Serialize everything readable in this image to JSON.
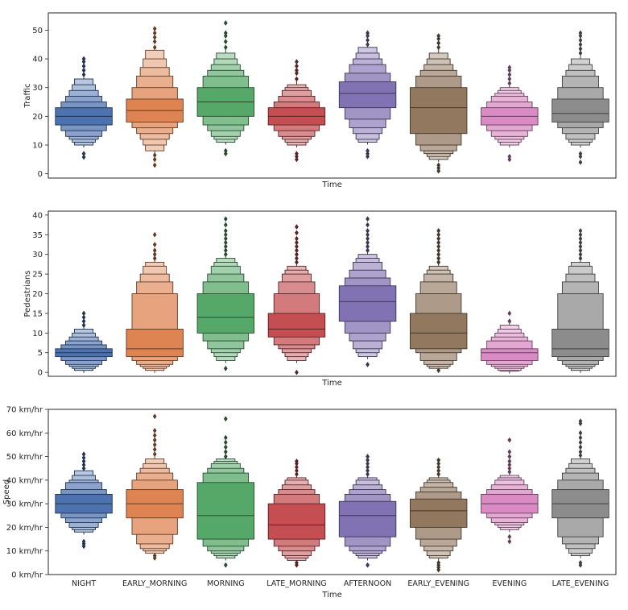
{
  "chart_data": [
    {
      "type": "boxen",
      "xlabel": "Time",
      "ylabel": "Traffic",
      "ylim": [
        -1.5,
        56
      ],
      "yticks": [
        0,
        10,
        20,
        30,
        40,
        50
      ],
      "ytick_labels": [
        "0",
        "10",
        "20",
        "30",
        "40",
        "50"
      ],
      "show_x_tick_labels": false,
      "categories": [
        "NIGHT",
        "EARLY_MORNING",
        "MORNING",
        "LATE_MORNING",
        "AFTERNOON",
        "EARLY_EVENING",
        "EVENING",
        "LATE_EVENING"
      ],
      "series": [
        {
          "levels": [
            [
              17,
              23
            ],
            [
              15,
              25
            ],
            [
              13,
              27
            ],
            [
              12,
              29
            ],
            [
              11,
              31
            ],
            [
              10,
              33
            ]
          ],
          "median": 20,
          "outliers": [
            5.8,
            7,
            34.5,
            36,
            37.5,
            39,
            40
          ]
        },
        {
          "levels": [
            [
              18,
              26
            ],
            [
              16,
              30
            ],
            [
              14,
              34
            ],
            [
              12,
              37
            ],
            [
              10,
              40
            ],
            [
              8,
              43
            ]
          ],
          "median": 22,
          "outliers": [
            3,
            5,
            6.5,
            44,
            46,
            47.5,
            49,
            50.5
          ]
        },
        {
          "levels": [
            [
              20,
              30
            ],
            [
              17,
              34
            ],
            [
              15,
              36
            ],
            [
              13,
              38
            ],
            [
              12,
              40
            ],
            [
              11,
              42
            ]
          ],
          "median": 25,
          "outliers": [
            7,
            8,
            44,
            46,
            48,
            49,
            52.5
          ]
        },
        {
          "levels": [
            [
              17,
              23
            ],
            [
              15,
              25
            ],
            [
              13,
              27
            ],
            [
              12,
              29
            ],
            [
              11,
              30
            ],
            [
              10,
              31
            ]
          ],
          "median": 20,
          "outliers": [
            5,
            6,
            7,
            33,
            35,
            36,
            37.5,
            39
          ]
        },
        {
          "levels": [
            [
              23,
              32
            ],
            [
              19,
              35
            ],
            [
              16,
              38
            ],
            [
              14,
              40
            ],
            [
              12,
              42
            ],
            [
              11,
              44
            ]
          ],
          "median": 28,
          "outliers": [
            6,
            7,
            8,
            45,
            46.5,
            48,
            49
          ]
        },
        {
          "levels": [
            [
              14,
              30
            ],
            [
              10,
              34
            ],
            [
              8,
              36
            ],
            [
              7,
              38
            ],
            [
              6,
              40
            ],
            [
              5,
              42
            ]
          ],
          "median": 23,
          "outliers": [
            1,
            2,
            3,
            44,
            45.5,
            47,
            48
          ]
        },
        {
          "levels": [
            [
              17,
              23
            ],
            [
              15,
              25
            ],
            [
              13,
              27
            ],
            [
              12,
              28
            ],
            [
              11,
              29
            ],
            [
              10,
              30
            ]
          ],
          "median": 20,
          "outliers": [
            5,
            6,
            31.5,
            33,
            34.5,
            36,
            37
          ]
        },
        {
          "levels": [
            [
              18,
              26
            ],
            [
              16,
              30
            ],
            [
              14,
              34
            ],
            [
              12,
              36
            ],
            [
              11,
              38
            ],
            [
              10,
              40
            ]
          ],
          "median": 21,
          "outliers": [
            4,
            6,
            7,
            42,
            43.5,
            45,
            46.5,
            48,
            49
          ]
        }
      ]
    },
    {
      "type": "boxen",
      "xlabel": "Time",
      "ylabel": "Pedestrians",
      "ylim": [
        -1,
        41
      ],
      "yticks": [
        0,
        5,
        10,
        15,
        20,
        25,
        30,
        35,
        40
      ],
      "ytick_labels": [
        "0",
        "5",
        "10",
        "15",
        "20",
        "25",
        "30",
        "35",
        "40"
      ],
      "show_x_tick_labels": false,
      "categories": [
        "NIGHT",
        "EARLY_MORNING",
        "MORNING",
        "LATE_MORNING",
        "AFTERNOON",
        "EARLY_EVENING",
        "EVENING",
        "LATE_EVENING"
      ],
      "series": [
        {
          "levels": [
            [
              4,
              6
            ],
            [
              3,
              7
            ],
            [
              2,
              8
            ],
            [
              1.5,
              9
            ],
            [
              1,
              10
            ],
            [
              0.5,
              11
            ]
          ],
          "median": 5,
          "outliers": [
            12,
            13,
            14,
            15
          ]
        },
        {
          "levels": [
            [
              4,
              11
            ],
            [
              3,
              20
            ],
            [
              2,
              23
            ],
            [
              1.5,
              25
            ],
            [
              1,
              27
            ],
            [
              0.5,
              28
            ]
          ],
          "median": 6,
          "outliers": [
            29,
            30,
            31,
            32.5,
            35
          ]
        },
        {
          "levels": [
            [
              10,
              20
            ],
            [
              8,
              23
            ],
            [
              6,
              25
            ],
            [
              5,
              27
            ],
            [
              4,
              28
            ],
            [
              3,
              29
            ]
          ],
          "median": 14,
          "outliers": [
            1,
            30,
            31,
            32,
            33,
            34,
            35,
            36,
            37.5,
            39
          ]
        },
        {
          "levels": [
            [
              9,
              15
            ],
            [
              7,
              20
            ],
            [
              6,
              23
            ],
            [
              5,
              25
            ],
            [
              4,
              26
            ],
            [
              3,
              27
            ]
          ],
          "median": 11,
          "outliers": [
            0,
            28,
            29,
            30,
            31,
            32,
            33,
            34,
            35.5,
            37
          ]
        },
        {
          "levels": [
            [
              13,
              22
            ],
            [
              10,
              24
            ],
            [
              8,
              26
            ],
            [
              6,
              28
            ],
            [
              5,
              29
            ],
            [
              4,
              30
            ]
          ],
          "median": 18,
          "outliers": [
            2,
            31,
            32,
            33,
            34,
            35,
            36,
            37.5,
            39
          ]
        },
        {
          "levels": [
            [
              6,
              15
            ],
            [
              5,
              20
            ],
            [
              3,
              23
            ],
            [
              2,
              25
            ],
            [
              1.5,
              26
            ],
            [
              1,
              27
            ]
          ],
          "median": 10,
          "outliers": [
            0.5,
            28,
            29,
            30,
            31,
            32,
            33,
            34,
            35,
            36
          ]
        },
        {
          "levels": [
            [
              3,
              6
            ],
            [
              2,
              8
            ],
            [
              1.5,
              9
            ],
            [
              1,
              10
            ],
            [
              0.5,
              11
            ],
            [
              0.3,
              12
            ]
          ],
          "median": 5,
          "outliers": [
            13,
            15
          ]
        },
        {
          "levels": [
            [
              4,
              11
            ],
            [
              3,
              20
            ],
            [
              2,
              23
            ],
            [
              1.5,
              25
            ],
            [
              1,
              27
            ],
            [
              0.5,
              28
            ]
          ],
          "median": 6,
          "outliers": [
            29,
            30,
            31,
            32,
            33,
            34,
            35,
            36
          ]
        }
      ]
    },
    {
      "type": "boxen",
      "xlabel": "Time",
      "ylabel": "Speed",
      "ylim": [
        0,
        70
      ],
      "yticks": [
        0,
        10,
        20,
        30,
        40,
        50,
        60,
        70
      ],
      "ytick_labels": [
        "0 km/hr",
        "10 km/hr",
        "20 km/hr",
        "30 km/hr",
        "40 km/hr",
        "50 km/hr",
        "60 km/hr",
        "70 km/hr"
      ],
      "show_x_tick_labels": true,
      "categories": [
        "NIGHT",
        "EARLY_MORNING",
        "MORNING",
        "LATE_MORNING",
        "AFTERNOON",
        "EARLY_EVENING",
        "EVENING",
        "LATE_EVENING"
      ],
      "series": [
        {
          "levels": [
            [
              26,
              34
            ],
            [
              24,
              36
            ],
            [
              22,
              39
            ],
            [
              20,
              40
            ],
            [
              19,
              42
            ],
            [
              18,
              44
            ]
          ],
          "median": 30,
          "outliers": [
            12,
            13,
            14,
            45,
            46.5,
            48,
            49.5,
            51
          ]
        },
        {
          "levels": [
            [
              24,
              36
            ],
            [
              17,
              40
            ],
            [
              13,
              43
            ],
            [
              11,
              45
            ],
            [
              10,
              47
            ],
            [
              9,
              49
            ]
          ],
          "median": 30,
          "outliers": [
            7,
            8,
            51,
            53,
            55,
            57,
            59,
            61,
            67
          ]
        },
        {
          "levels": [
            [
              15,
              39
            ],
            [
              12,
              43
            ],
            [
              10,
              45
            ],
            [
              9,
              47
            ],
            [
              8,
              48
            ],
            [
              7,
              49
            ]
          ],
          "median": 25,
          "outliers": [
            4,
            50,
            52,
            54,
            56,
            58,
            66
          ]
        },
        {
          "levels": [
            [
              15,
              30
            ],
            [
              12,
              34
            ],
            [
              10,
              36
            ],
            [
              8,
              38
            ],
            [
              7,
              40
            ],
            [
              6,
              41
            ]
          ],
          "median": 21,
          "outliers": [
            4,
            5,
            42.5,
            44,
            45.5,
            47,
            48
          ]
        },
        {
          "levels": [
            [
              16,
              31
            ],
            [
              12,
              34
            ],
            [
              10,
              36
            ],
            [
              9,
              38
            ],
            [
              8,
              40
            ],
            [
              7,
              41
            ]
          ],
          "median": 25,
          "outliers": [
            4,
            42.5,
            44,
            45.5,
            47,
            48.5,
            50
          ]
        },
        {
          "levels": [
            [
              20,
              32
            ],
            [
              15,
              35
            ],
            [
              12,
              37
            ],
            [
              10,
              39
            ],
            [
              8,
              40
            ],
            [
              7,
              41
            ]
          ],
          "median": 27,
          "outliers": [
            2,
            3,
            4,
            5,
            42.5,
            44,
            45.5,
            47,
            48.5
          ]
        },
        {
          "levels": [
            [
              26,
              34
            ],
            [
              24,
              36
            ],
            [
              22,
              38
            ],
            [
              21,
              40
            ],
            [
              20,
              41
            ],
            [
              19,
              42
            ]
          ],
          "median": 30,
          "outliers": [
            14,
            16,
            43.5,
            45,
            46.5,
            48,
            50,
            52,
            57
          ]
        },
        {
          "levels": [
            [
              24,
              36
            ],
            [
              16,
              40
            ],
            [
              13,
              43
            ],
            [
              11,
              45
            ],
            [
              9,
              47
            ],
            [
              8,
              49
            ]
          ],
          "median": 30,
          "outliers": [
            4,
            5,
            50.5,
            52,
            54,
            56,
            58,
            60,
            64,
            65
          ]
        }
      ]
    }
  ],
  "palette": [
    "#4c72b0",
    "#dd8452",
    "#55a868",
    "#c44e52",
    "#8172b3",
    "#937860",
    "#da8bc3",
    "#8c8c8c"
  ]
}
